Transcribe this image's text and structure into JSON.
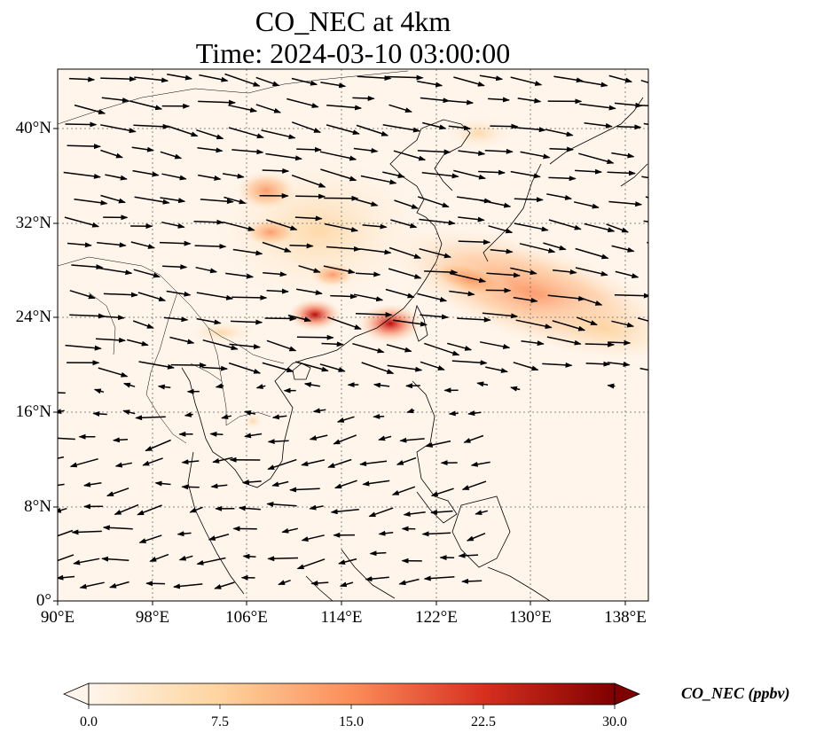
{
  "title": {
    "line1": "CO_NEC at 4km",
    "line2": "Time: 2024-03-10 03:00:00"
  },
  "map": {
    "lat_ticks": [
      "40°N",
      "32°N",
      "24°N",
      "16°N",
      "8°N",
      "0°"
    ],
    "lon_ticks": [
      "90°E",
      "98°E",
      "106°E",
      "114°E",
      "122°E",
      "130°E",
      "138°E"
    ],
    "extent": {
      "lon_min": 90,
      "lon_max": 140,
      "lat_min": 0,
      "lat_max": 45
    },
    "gridlines": "dotted",
    "variable": "CO_NEC concentration field with wind vectors"
  },
  "colorbar": {
    "label": "CO_NEC (ppbv)",
    "ticks": [
      "0.0",
      "7.5",
      "15.0",
      "22.5",
      "30.0"
    ],
    "min": 0,
    "max": 30,
    "colormap": [
      "#fff5eb",
      "#fdd49e",
      "#fc8d59",
      "#d7301f",
      "#7f0000"
    ],
    "extend": "both"
  }
}
